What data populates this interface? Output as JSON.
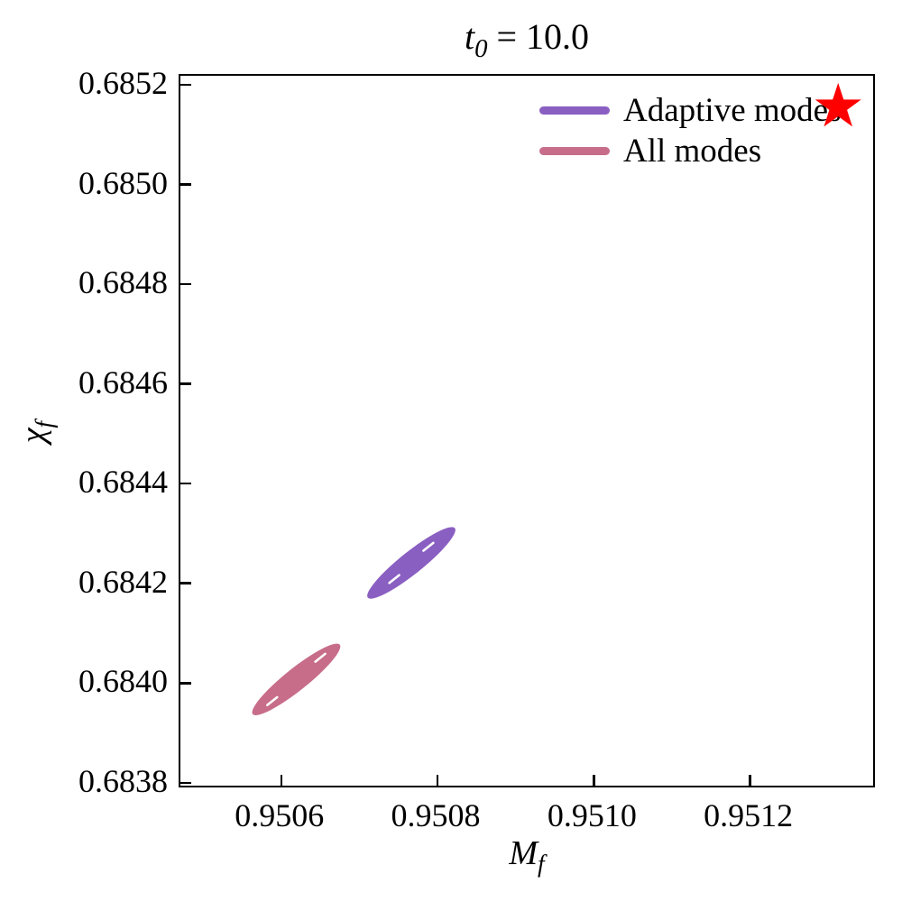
{
  "figure": {
    "background": "#ffffff",
    "title": {
      "var": "t",
      "sub": "0",
      "rest": " = 10.0"
    }
  },
  "chart_data": {
    "type": "scatter",
    "title": "t_0 = 10.0",
    "xlabel": {
      "main": "M",
      "sub": "f"
    },
    "ylabel": {
      "main": "χ",
      "sub": "f"
    },
    "xlim": [
      0.950471,
      0.951362
    ],
    "ylim": [
      0.683787,
      0.685218
    ],
    "grid": false,
    "legend_position": "upper right",
    "xticks": {
      "values": [
        0.9506,
        0.9508,
        0.951,
        0.9512
      ],
      "labels": [
        "0.9506",
        "0.9508",
        "0.9510",
        "0.9512"
      ]
    },
    "yticks": {
      "values": [
        0.6838,
        0.684,
        0.6842,
        0.6844,
        0.6846,
        0.6848,
        0.685,
        0.6852
      ],
      "labels": [
        "0.6838",
        "0.6840",
        "0.6842",
        "0.6844",
        "0.6846",
        "0.6848",
        "0.6850",
        "0.6852"
      ]
    },
    "series": [
      {
        "name": "Adaptive modes",
        "color": "#8a5fc2",
        "shape": "confidence-ellipse",
        "center": {
          "x": 0.950768,
          "y": 0.684236
        },
        "half_extent_x": 5.6e-05,
        "half_extent_y": 7e-05,
        "minor_to_major": 0.2,
        "inner_contour_fraction": 0.42
      },
      {
        "name": "All modes",
        "color": "#c76d8a",
        "shape": "confidence-ellipse",
        "center": {
          "x": 0.95062,
          "y": 0.684001
        },
        "half_extent_x": 5.6e-05,
        "half_extent_y": 7e-05,
        "minor_to_major": 0.2,
        "inner_contour_fraction": 0.58
      }
    ],
    "true_value_marker": {
      "shape": "star",
      "color": "#ff0000",
      "x": 0.951317,
      "y": 0.685155
    }
  }
}
